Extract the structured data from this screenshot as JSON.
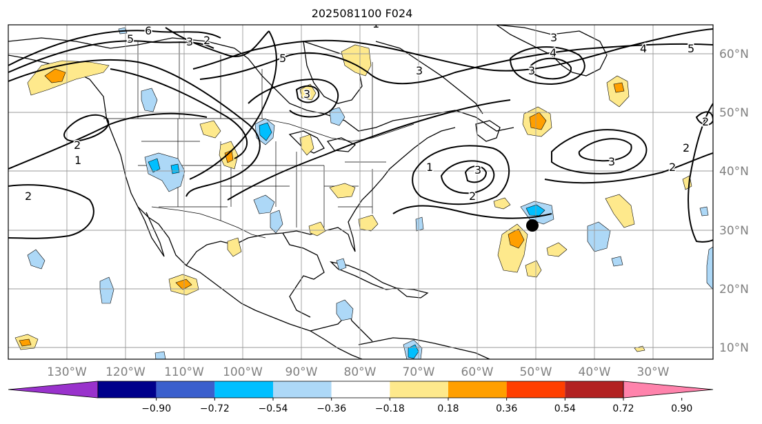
{
  "title": "2025081100 F024",
  "lat_labels": [
    "60°N",
    "50°N",
    "40°N",
    "30°N",
    "20°N",
    "10°N"
  ],
  "lon_labels": [
    "130°W",
    "120°W",
    "110°W",
    "100°W",
    "90°W",
    "80°W",
    "70°W",
    "60°W",
    "50°W",
    "40°W",
    "30°W"
  ],
  "colorbar": {
    "ticks": [
      "−0.90",
      "−0.72",
      "−0.54",
      "−0.36",
      "−0.18",
      "0.18",
      "0.36",
      "0.54",
      "0.72",
      "0.90"
    ],
    "colors": [
      "#9932cc",
      "#00008b",
      "#3a5fcd",
      "#00bfff",
      "#add8f7",
      "#ffffff",
      "#fee98c",
      "#ff9f00",
      "#ff3f00",
      "#b22222",
      "#ff83ac"
    ]
  },
  "contour_labels": [
    "5",
    "6",
    "3",
    "2",
    "2",
    "1",
    "3",
    "5",
    "4",
    "5",
    "3",
    "3",
    "2",
    "4",
    "2",
    "2",
    "1",
    "3",
    "2",
    "3",
    "1",
    "2",
    "3"
  ],
  "fill_colors": {
    "light_yellow": "#fee98c",
    "orange": "#ff9f00",
    "light_blue": "#add8f7",
    "blue": "#00bfff"
  }
}
